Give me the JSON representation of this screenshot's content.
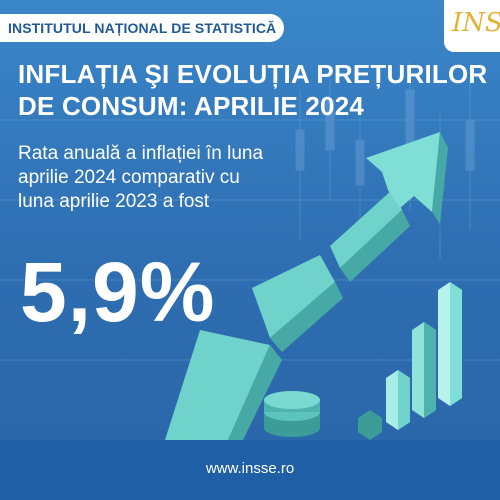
{
  "header": {
    "institution": "INSTITUTUL NAȚIONAL DE STATISTICĂ",
    "logo_text": "INS"
  },
  "title": {
    "line1": "INFLAȚIA ŞI EVOLUȚIA PREȚURILOR",
    "line2": "DE CONSUM: APRILIE 2024"
  },
  "subtitle": {
    "line1": "Rata anuală a inflației în luna",
    "line2": "aprilie 2024 comparativ cu",
    "line3": "luna aprilie 2023 a fost"
  },
  "value": "5,9%",
  "footer": {
    "url": "www.insse.ro"
  },
  "colors": {
    "background": "#2f73b7",
    "footer": "#1f5fa6",
    "arrow": "#5fc7c0",
    "logo_accent": "#e0b43a"
  }
}
